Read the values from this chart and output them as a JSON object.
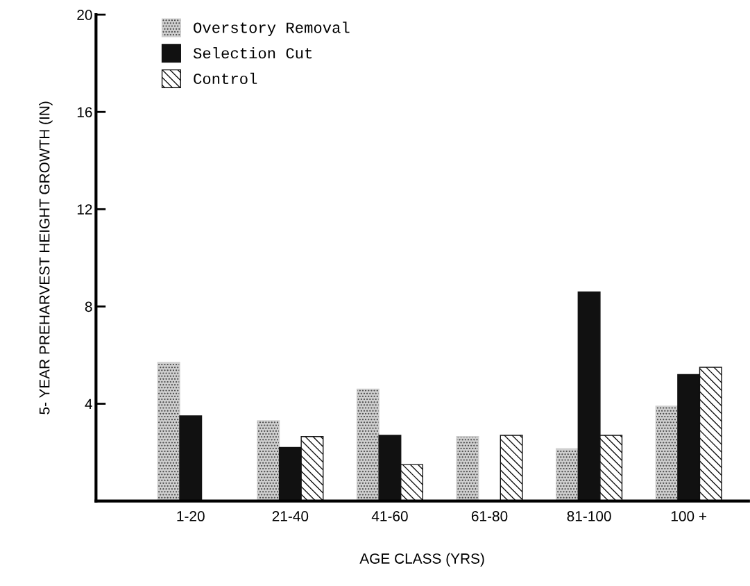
{
  "chart_data": {
    "type": "bar",
    "xlabel": "AGE CLASS (YRS)",
    "ylabel": "5- YEAR PREHARVEST HEIGHT GROWTH (IN)",
    "categories": [
      "1-20",
      "21-40",
      "41-60",
      "61-80",
      "81-100",
      "100 +"
    ],
    "series": [
      {
        "name": "Overstory Removal",
        "color": "#cfcfcf",
        "values": [
          5.7,
          3.3,
          4.6,
          2.65,
          2.15,
          3.9
        ]
      },
      {
        "name": "Selection Cut",
        "color": "#111111",
        "values": [
          3.5,
          2.2,
          2.7,
          null,
          8.6,
          5.2
        ]
      },
      {
        "name": "Control",
        "color": "#111111",
        "values": [
          null,
          2.65,
          1.5,
          2.7,
          2.7,
          5.5
        ]
      }
    ],
    "ylim": [
      0,
      20
    ],
    "yticks": [
      4,
      8,
      12,
      16,
      20
    ],
    "grid": false,
    "legend": "top left"
  }
}
